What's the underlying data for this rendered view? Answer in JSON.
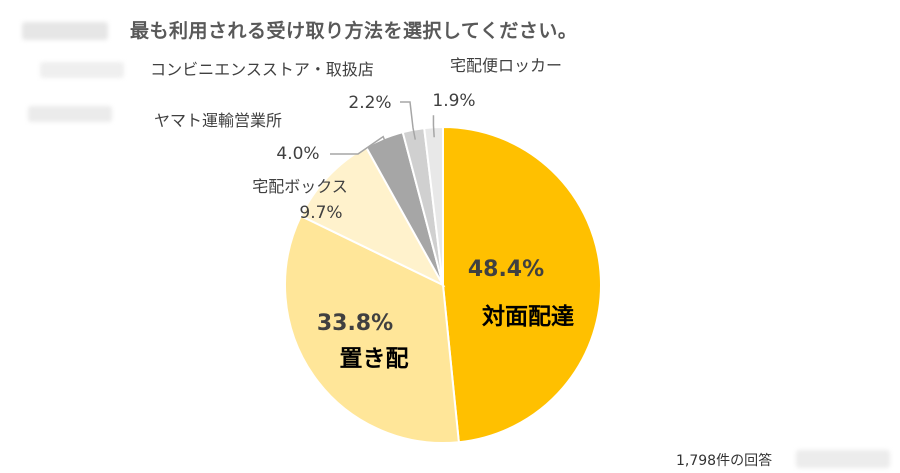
{
  "survey": {
    "title": "最も利用される受け取り方法を選択してください。",
    "response_count": "1,798件の回答"
  },
  "chart_data": {
    "type": "pie",
    "title": "最も利用される受け取り方法を選択してください。",
    "start_angle_deg": 0,
    "direction": "clockwise",
    "slices": [
      {
        "label": "対面配達",
        "value": 48.4,
        "value_label": "48.4%",
        "color": "#FFC000",
        "label_position": "inside"
      },
      {
        "label": "置き配",
        "value": 33.8,
        "value_label": "33.8%",
        "color": "#FFE699",
        "label_position": "inside"
      },
      {
        "label": "宅配ボックス",
        "value": 9.7,
        "value_label": "9.7%",
        "color": "#FFF2CC",
        "label_position": "outside"
      },
      {
        "label": "ヤマト運輸営業所",
        "value": 4.0,
        "value_label": "4.0%",
        "color": "#A6A6A6",
        "label_position": "outside"
      },
      {
        "label": "コンビニエンスストア・取扱店",
        "value": 2.2,
        "value_label": "2.2%",
        "color": "#D0D0D0",
        "label_position": "outside"
      },
      {
        "label": "宅配便ロッカー",
        "value": 1.9,
        "value_label": "1.9%",
        "color": "#E8E8E8",
        "label_position": "outside"
      }
    ],
    "slice_border_color": "#FFFFFF",
    "leader_line_color": "#A6A6A6",
    "legend": "none"
  }
}
